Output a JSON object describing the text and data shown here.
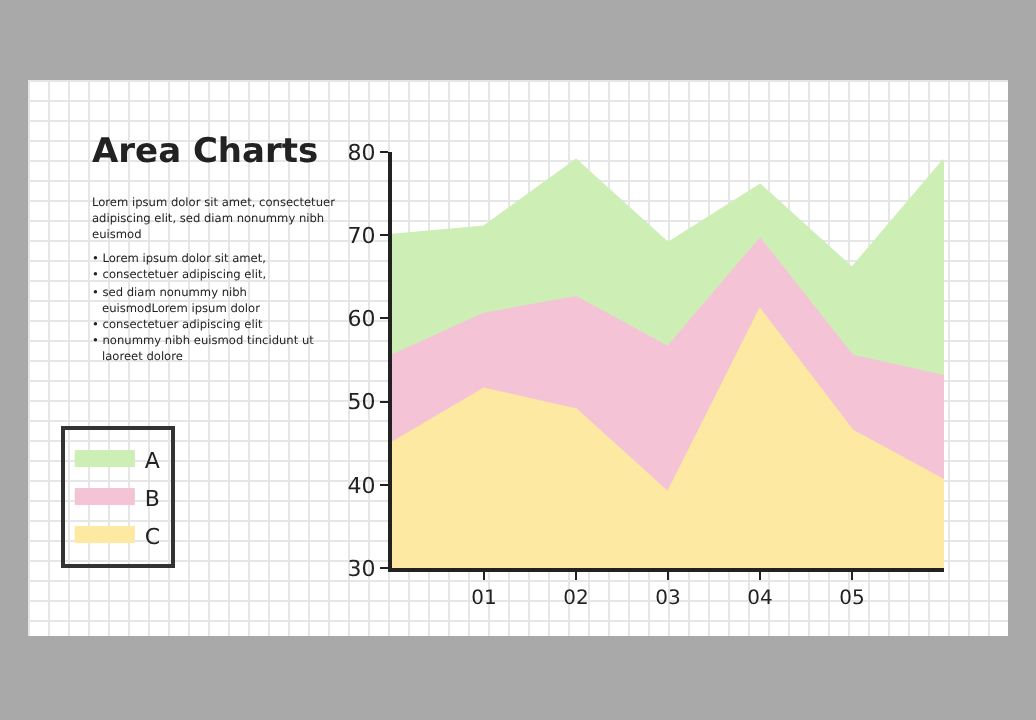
{
  "chart_data": {
    "type": "area",
    "title": "Area Charts",
    "annotations": [
      "Lorem ipsum dolor sit amet, consectetuer adipiscing elit, sed diam nonummy nibh euismod",
      "• Lorem ipsum dolor sit amet,",
      "• consectetuer adipiscing elit,",
      "• sed diam nonummy nibh euismodLorem ipsum dolor",
      "• consectetuer adipiscing elit",
      "• nonummy nibh euismod tincidunt ut laoreet dolore"
    ],
    "x": [
      0,
      1,
      2,
      3,
      4,
      5,
      6
    ],
    "series": [
      {
        "name": "C",
        "color": "#fde9a2",
        "values": [
          45,
          51.5,
          49,
          39,
          61,
          46.5,
          40.5
        ]
      },
      {
        "name": "B",
        "color": "#f4c4d6",
        "values": [
          55.5,
          60.5,
          62.5,
          56.5,
          69.5,
          55.5,
          53
        ]
      },
      {
        "name": "A",
        "color": "#cdeeb5",
        "values": [
          70,
          71,
          79,
          69,
          76,
          66,
          79
        ]
      }
    ],
    "xlim": [
      0,
      6
    ],
    "xticks": [
      {
        "value": 1,
        "label": "01"
      },
      {
        "value": 2,
        "label": "02"
      },
      {
        "value": 3,
        "label": "03"
      },
      {
        "value": 4,
        "label": "04"
      },
      {
        "value": 5,
        "label": "05"
      }
    ],
    "ylim": [
      30,
      80
    ],
    "yticks": [
      30,
      40,
      50,
      60,
      70,
      80
    ],
    "grid": false,
    "legend": "left"
  }
}
